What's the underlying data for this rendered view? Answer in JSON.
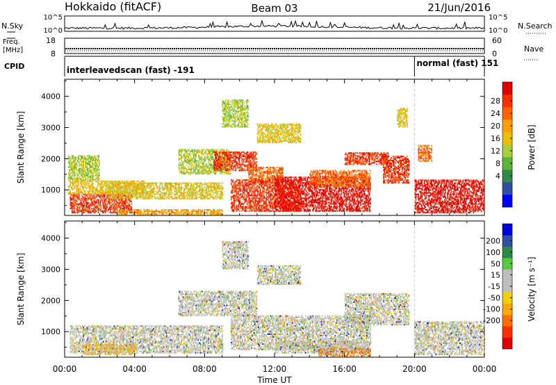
{
  "header": {
    "station": "Hokkaido (fitACF)",
    "beam": "Beam 03",
    "date": "21/Jun/2016"
  },
  "top_panels": {
    "nsky_label": "N.Sky",
    "nsky_ticks": [
      "10^5",
      "10^0"
    ],
    "nsearch_label": "N.Search",
    "nsearch_ticks": [
      "10^5",
      "10^0"
    ],
    "freq_label_line1": "Freq.",
    "freq_label_line2": "[MHz]",
    "freq_ticks": [
      "18",
      "8"
    ],
    "nave_label": "Nave",
    "nave_ticks": [
      "60",
      "0"
    ],
    "cpid_label": "CPID",
    "cpid_segments": [
      {
        "text": "interleavedscan (fast) -191",
        "start_hour": 0,
        "end_hour": 20
      },
      {
        "text": "normal (fast) 151",
        "start_hour": 20,
        "end_hour": 24
      }
    ]
  },
  "x_axis": {
    "title": "Time UT",
    "range_hours": [
      0,
      24
    ],
    "ticks": [
      "00:00",
      "04:00",
      "08:00",
      "12:00",
      "16:00",
      "20:00",
      "00:00"
    ]
  },
  "chart_data": [
    {
      "type": "heatmap",
      "name": "power",
      "ylabel": "Slant Range [km]",
      "ylim": [
        180,
        4550
      ],
      "yticks": [
        "1000",
        "2000",
        "3000",
        "4000"
      ],
      "xlim_hours": [
        0,
        24
      ],
      "colorbar_label": "Power [dB]",
      "colorbar_ticks": [
        "28",
        "24",
        "20",
        "16",
        "12",
        "8",
        "4"
      ],
      "colorbar_colors": [
        "#0000ff",
        "#2d50a0",
        "#2f8a46",
        "#5ab43a",
        "#a6cf3a",
        "#e8c000",
        "#ff9c00",
        "#ff6400",
        "#ff3000",
        "#e00000"
      ],
      "backscatter_bands": [
        {
          "t0": 0.3,
          "t1": 3.8,
          "r0": 250,
          "r1": 850,
          "level": 8
        },
        {
          "t0": 0.2,
          "t1": 4.5,
          "r0": 850,
          "r1": 1300,
          "level": 5
        },
        {
          "t0": 0.2,
          "t1": 2.0,
          "r0": 1300,
          "r1": 2100,
          "level": 4
        },
        {
          "t0": 2.5,
          "t1": 9.0,
          "r0": 700,
          "r1": 1200,
          "level": 5
        },
        {
          "t0": 6.5,
          "t1": 9.5,
          "r0": 1500,
          "r1": 2300,
          "level": 4
        },
        {
          "t0": 8.5,
          "t1": 11.0,
          "r0": 1600,
          "r1": 2200,
          "level": 8
        },
        {
          "t0": 10.5,
          "t1": 12.5,
          "r0": 1200,
          "r1": 1700,
          "level": 7
        },
        {
          "t0": 9.5,
          "t1": 13.5,
          "r0": 300,
          "r1": 1300,
          "level": 8
        },
        {
          "t0": 12.0,
          "t1": 17.5,
          "r0": 300,
          "r1": 1400,
          "level": 9
        },
        {
          "t0": 14.0,
          "t1": 17.5,
          "r0": 1100,
          "r1": 1600,
          "level": 7
        },
        {
          "t0": 16.0,
          "t1": 18.5,
          "r0": 1800,
          "r1": 2200,
          "level": 8
        },
        {
          "t0": 18.2,
          "t1": 19.7,
          "r0": 1200,
          "r1": 2100,
          "level": 8
        },
        {
          "t0": 20.0,
          "t1": 24.0,
          "r0": 250,
          "r1": 1300,
          "level": 9
        },
        {
          "t0": 20.2,
          "t1": 21.0,
          "r0": 1900,
          "r1": 2400,
          "level": 7
        },
        {
          "t0": 9.0,
          "t1": 10.5,
          "r0": 3000,
          "r1": 3900,
          "level": 4
        },
        {
          "t0": 11.0,
          "t1": 13.5,
          "r0": 2500,
          "r1": 3100,
          "level": 5
        },
        {
          "t0": 3.0,
          "t1": 9.0,
          "r0": 200,
          "r1": 350,
          "level": 6
        },
        {
          "t0": 19.0,
          "t1": 19.6,
          "r0": 3000,
          "r1": 3600,
          "level": 5
        }
      ]
    },
    {
      "type": "heatmap",
      "name": "velocity",
      "ylabel": "Slant Range [km]",
      "ylim": [
        180,
        4550
      ],
      "yticks": [
        "1000",
        "2000",
        "3000",
        "4000"
      ],
      "xlim_hours": [
        0,
        24
      ],
      "colorbar_label": "Velocity [m s⁻¹]",
      "colorbar_ticks": [
        "200",
        "100",
        "50",
        "15",
        "-15",
        "-50",
        "-100",
        "-200"
      ],
      "colorbar_colors": [
        "#e00000",
        "#ff3000",
        "#ff7000",
        "#ffa800",
        "#f0d000",
        "#bebebe",
        "#bebebe",
        "#58c840",
        "#2f8a46",
        "#2d50a0",
        "#0000dd"
      ],
      "backscatter_bands": [
        {
          "t0": 0.3,
          "t1": 9.0,
          "r0": 300,
          "r1": 1200,
          "level": 5
        },
        {
          "t0": 1.0,
          "t1": 4.0,
          "r0": 250,
          "r1": 600,
          "level": 3
        },
        {
          "t0": 6.5,
          "t1": 11.0,
          "r0": 1500,
          "r1": 2300,
          "level": 5
        },
        {
          "t0": 9.5,
          "t1": 17.5,
          "r0": 400,
          "r1": 1500,
          "level": 5
        },
        {
          "t0": 12.0,
          "t1": 17.5,
          "r0": 300,
          "r1": 700,
          "level": 4
        },
        {
          "t0": 14.5,
          "t1": 17.5,
          "r0": 200,
          "r1": 450,
          "level": 2
        },
        {
          "t0": 16.0,
          "t1": 19.7,
          "r0": 1200,
          "r1": 2200,
          "level": 5
        },
        {
          "t0": 20.0,
          "t1": 24.0,
          "r0": 250,
          "r1": 1300,
          "level": 5
        },
        {
          "t0": 9.0,
          "t1": 10.5,
          "r0": 3000,
          "r1": 3900,
          "level": 5
        },
        {
          "t0": 11.0,
          "t1": 13.5,
          "r0": 2500,
          "r1": 3100,
          "level": 4
        }
      ]
    }
  ],
  "colors": {
    "axis": "#000000",
    "scan_rule": "#cccccc",
    "nsky_trace": "#000000"
  }
}
